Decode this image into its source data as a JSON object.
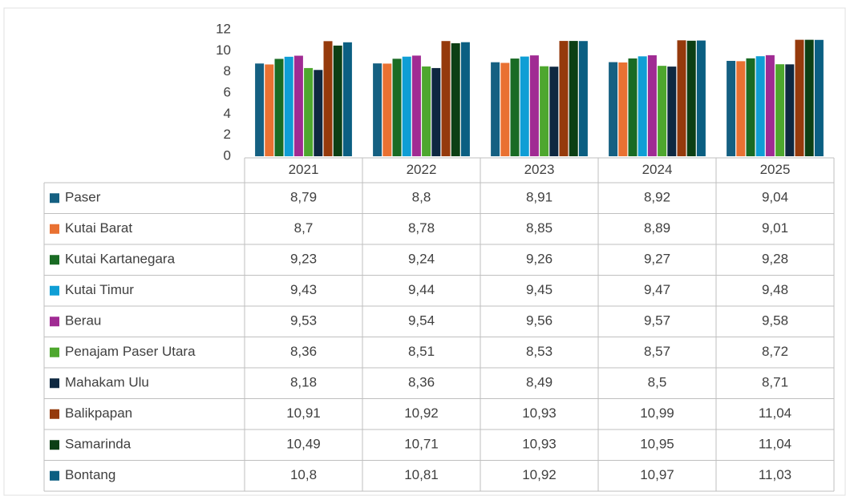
{
  "chart_data": {
    "type": "bar",
    "categories": [
      "2021",
      "2022",
      "2023",
      "2024",
      "2025"
    ],
    "ylim": [
      0,
      12
    ],
    "yticks": [
      0,
      2,
      4,
      6,
      8,
      10,
      12
    ],
    "series": [
      {
        "name": "Paser",
        "color": "#156082",
        "values": [
          8.79,
          8.8,
          8.91,
          8.92,
          9.04
        ],
        "value_labels": [
          "8,79",
          "8,8",
          "8,91",
          "8,92",
          "9,04"
        ]
      },
      {
        "name": "Kutai Barat",
        "color": "#e97132",
        "values": [
          8.7,
          8.78,
          8.85,
          8.89,
          9.01
        ],
        "value_labels": [
          "8,7",
          "8,78",
          "8,85",
          "8,89",
          "9,01"
        ]
      },
      {
        "name": "Kutai Kartanegara",
        "color": "#196b24",
        "values": [
          9.23,
          9.24,
          9.26,
          9.27,
          9.28
        ],
        "value_labels": [
          "9,23",
          "9,24",
          "9,26",
          "9,27",
          "9,28"
        ]
      },
      {
        "name": "Kutai Timur",
        "color": "#0f9ed5",
        "values": [
          9.43,
          9.44,
          9.45,
          9.47,
          9.48
        ],
        "value_labels": [
          "9,43",
          "9,44",
          "9,45",
          "9,47",
          "9,48"
        ]
      },
      {
        "name": "Berau",
        "color": "#a02b93",
        "values": [
          9.53,
          9.54,
          9.56,
          9.57,
          9.58
        ],
        "value_labels": [
          "9,53",
          "9,54",
          "9,56",
          "9,57",
          "9,58"
        ]
      },
      {
        "name": "Penajam Paser Utara",
        "color": "#4ea72e",
        "values": [
          8.36,
          8.51,
          8.53,
          8.57,
          8.72
        ],
        "value_labels": [
          "8,36",
          "8,51",
          "8,53",
          "8,57",
          "8,72"
        ]
      },
      {
        "name": "Mahakam Ulu",
        "color": "#0e2841",
        "values": [
          8.18,
          8.36,
          8.49,
          8.5,
          8.71
        ],
        "value_labels": [
          "8,18",
          "8,36",
          "8,49",
          "8,5",
          "8,71"
        ]
      },
      {
        "name": "Balikpapan",
        "color": "#953a0c",
        "values": [
          10.91,
          10.92,
          10.93,
          10.99,
          11.04
        ],
        "value_labels": [
          "10,91",
          "10,92",
          "10,93",
          "10,99",
          "11,04"
        ]
      },
      {
        "name": "Samarinda",
        "color": "#0c3f14",
        "values": [
          10.49,
          10.71,
          10.93,
          10.95,
          11.04
        ],
        "value_labels": [
          "10,49",
          "10,71",
          "10,93",
          "10,95",
          "11,04"
        ]
      },
      {
        "name": "Bontang",
        "color": "#0b5f82",
        "values": [
          10.8,
          10.81,
          10.92,
          10.97,
          11.03
        ],
        "value_labels": [
          "10,8",
          "10,81",
          "10,92",
          "10,97",
          "11,03"
        ]
      }
    ]
  }
}
